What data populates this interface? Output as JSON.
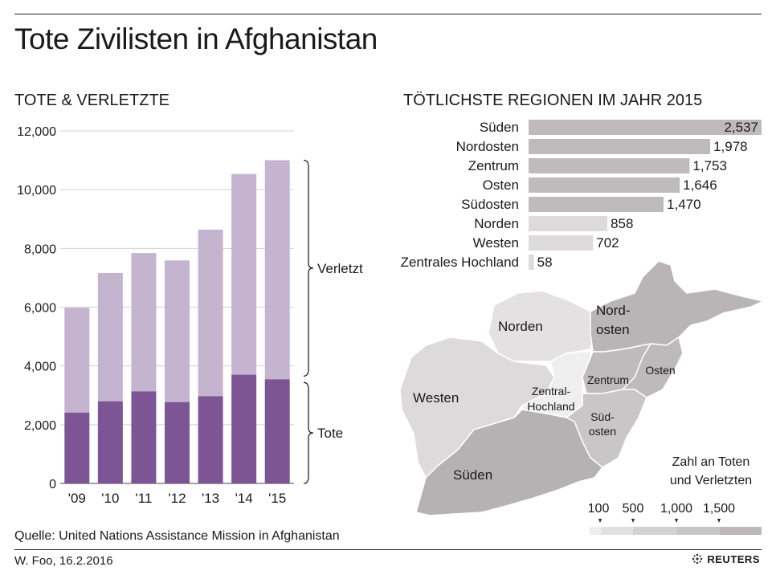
{
  "title": "Tote Zivilisten in Afghanistan",
  "source": "Quelle: United Nations Assistance Mission in Afghanistan",
  "byline": "W. Foo, 16.2.2016",
  "logo_text": "REUTERS",
  "colors": {
    "killed": "#7d5594",
    "injured": "#c4b4d0",
    "region_bar_dark": "#bfbbbc",
    "region_bar_light": "#dcdadb",
    "grid": "#d0d0d0"
  },
  "chart_data": [
    {
      "type": "bar",
      "stacked": true,
      "title": "TOTE & VERLETZTE",
      "categories": [
        "'09",
        "'10",
        "'11",
        "'12",
        "'13",
        "'14",
        "'15"
      ],
      "series": [
        {
          "name": "Tote",
          "values": [
            2412,
            2794,
            3133,
            2769,
            2969,
            3701,
            3545
          ]
        },
        {
          "name": "Verletzt",
          "values": [
            3566,
            4368,
            4709,
            4821,
            5669,
            6834,
            7457
          ]
        }
      ],
      "totals": [
        5978,
        7162,
        7842,
        7590,
        8638,
        10535,
        11002
      ],
      "yticks": [
        "0",
        "2,000",
        "4,000",
        "6,000",
        "8,000",
        "10,000",
        "12,000"
      ],
      "ylim": [
        0,
        12000
      ],
      "grid": true
    },
    {
      "type": "bar",
      "orientation": "horizontal",
      "title": "TÖTLICHSTE REGIONEN IM JAHR 2015",
      "categories": [
        "Süden",
        "Nordosten",
        "Zentrum",
        "Osten",
        "Südosten",
        "Norden",
        "Westen",
        "Zentrales Hochland"
      ],
      "values": [
        2537,
        1978,
        1753,
        1646,
        1470,
        858,
        702,
        58
      ],
      "value_labels": [
        "2,537",
        "1,978",
        "1,753",
        "1,646",
        "1,470",
        "858",
        "702",
        "58"
      ]
    }
  ],
  "map": {
    "labels": {
      "norden": "Norden",
      "nordosten_1": "Nord-",
      "nordosten_2": "osten",
      "westen": "Westen",
      "zentrum": "Zentrum",
      "osten": "Osten",
      "zentral_1": "Zentral-",
      "zentral_2": "Hochland",
      "suedosten_1": "Süd-",
      "suedosten_2": "osten",
      "sueden": "Süden"
    },
    "legend_title_1": "Zahl an Toten",
    "legend_title_2": "und Verletzten",
    "legend_ticks": [
      "100",
      "500",
      "1,000",
      "1,500"
    ]
  }
}
